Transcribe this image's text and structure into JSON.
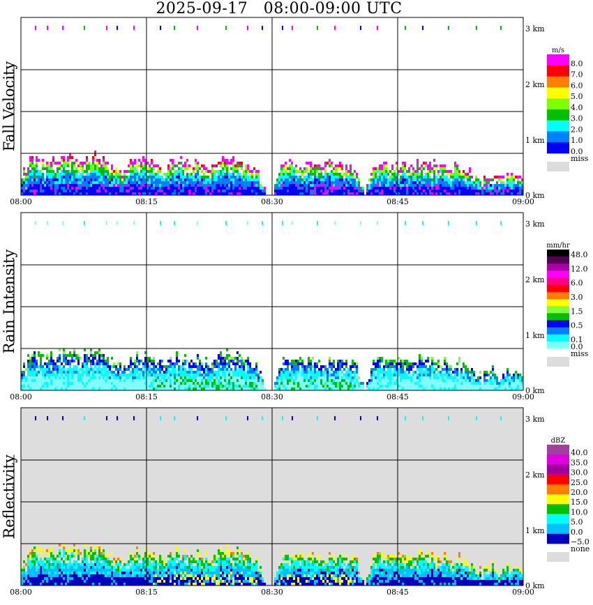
{
  "title": "2025-09-17   08:00-09:00 UTC",
  "chart_data": {
    "type": "heatmap",
    "time_range": [
      "08:00",
      "09:00"
    ],
    "x_ticks": [
      "08:00",
      "08:15",
      "08:30",
      "08:45",
      "09:00"
    ],
    "y_ticks": [
      "0 km",
      "1 km",
      "2 km",
      "3 km"
    ],
    "y_range_km": [
      0,
      3
    ],
    "echo_top_km_per_minute": [
      0.35,
      0.6,
      0.6,
      0.55,
      0.6,
      0.7,
      0.65,
      0.6,
      0.65,
      0.7,
      0.55,
      0.5,
      0.4,
      0.55,
      0.6,
      0.65,
      0.5,
      0.5,
      0.6,
      0.6,
      0.55,
      0.55,
      0.5,
      0.5,
      0.6,
      0.65,
      0.55,
      0.5,
      0.45,
      0.05,
      0,
      0.5,
      0.55,
      0.55,
      0.55,
      0.5,
      0.55,
      0.55,
      0.5,
      0.45,
      0.4,
      0,
      0.5,
      0.6,
      0.55,
      0.5,
      0.55,
      0.5,
      0.6,
      0.55,
      0.5,
      0.45,
      0.5,
      0.45,
      0.3,
      0.2,
      0.4,
      0.25,
      0.35,
      0.3,
      0.2
    ],
    "panels": [
      {
        "name": "Fall Velocity",
        "unit": "m/s",
        "background": "#ffffff",
        "levels": [
          "8.0",
          "7.0",
          "6.0",
          "5.0",
          "4.0",
          "3.0",
          "2.0",
          "1.0",
          "0.0"
        ],
        "colors": [
          "#ff00ff",
          "#ff0000",
          "#ff8000",
          "#ffff00",
          "#80ff00",
          "#00c000",
          "#00ffff",
          "#0080ff",
          "#0000ff"
        ],
        "missing_label": "miss",
        "missing_color": "#dddddd",
        "dominant": [
          8,
          8,
          7,
          7,
          6,
          5,
          4,
          0
        ],
        "marker_colors": [
          "#00c000",
          "#0000ff",
          "#ff00ff"
        ]
      },
      {
        "name": "Rain Intensity",
        "unit": "mm/hr",
        "background": "#ffffff",
        "levels": [
          "48.0",
          "",
          "12.0",
          "",
          "6.0",
          "",
          "3.0",
          "",
          "1.5",
          "",
          "0.5",
          "",
          "0.1",
          "0.0"
        ],
        "colors": [
          "#000000",
          "#550055",
          "#aa00aa",
          "#ff00ff",
          "#ff0080",
          "#ff0000",
          "#ff8000",
          "#ffff00",
          "#80ff40",
          "#00c000",
          "#0000ff",
          "#0080ff",
          "#00ffff",
          "#80ffff"
        ],
        "missing_label": "miss",
        "missing_color": "#dddddd",
        "dominant": [
          13,
          13,
          13,
          12,
          12,
          11,
          10,
          9
        ],
        "marker_colors": [
          "#00ffff",
          "#80ffff"
        ]
      },
      {
        "name": "Reflectivity",
        "unit": "dBZ",
        "background": "#dddddd",
        "levels": [
          "40.0",
          "35.0",
          "30.0",
          "25.0",
          "20.0",
          "15.0",
          "10.0",
          "5.0",
          "0.0",
          "−5.0"
        ],
        "colors": [
          "#a040a0",
          "#e000e0",
          "#a000a0",
          "#ff0000",
          "#ff8000",
          "#ffff00",
          "#00c000",
          "#00ffff",
          "#00c0ff",
          "#0000c0"
        ],
        "missing_label": "none",
        "missing_color": "#dddddd",
        "dominant": [
          9,
          9,
          8,
          8,
          7,
          7,
          6,
          5
        ],
        "marker_colors": [
          "#00ffff",
          "#0000c0"
        ]
      }
    ]
  }
}
